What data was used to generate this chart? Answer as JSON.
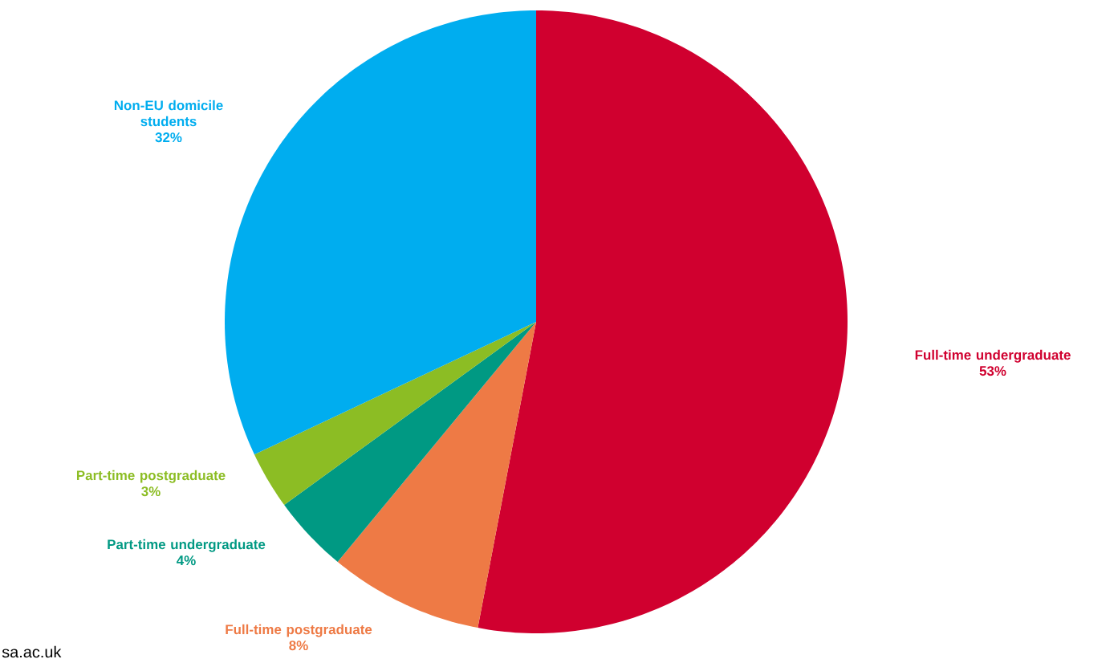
{
  "chart_data": {
    "type": "pie",
    "categories": [
      "Full-time undergraduate",
      "Full-time postgraduate",
      "Part-time undergraduate",
      "Part-time postgraduate",
      "Non-EU domicile students"
    ],
    "values": [
      53,
      8,
      4,
      3,
      32
    ],
    "value_labels": [
      "53%",
      "8%",
      "4%",
      "3%",
      "32%"
    ],
    "colors": [
      "#d0002f",
      "#ee7a45",
      "#009983",
      "#8cbd24",
      "#00adef"
    ],
    "annotations": [
      "sa.ac.uk"
    ]
  }
}
